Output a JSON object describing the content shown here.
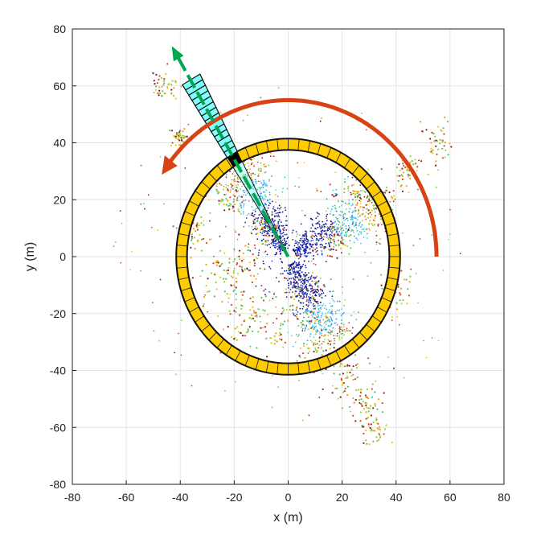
{
  "chart_data": {
    "type": "scatter",
    "title": "",
    "xlabel": "x (m)",
    "ylabel": "y (m)",
    "xlim": [
      -80,
      80
    ],
    "ylim": [
      -80,
      80
    ],
    "xticks": [
      "-80",
      "-60",
      "-40",
      "-20",
      "0",
      "20",
      "40",
      "60",
      "80"
    ],
    "yticks": [
      "80",
      "60",
      "40",
      "20",
      "0",
      "-20",
      "-40",
      "-60",
      "-80"
    ],
    "grid": true,
    "ring": {
      "center": [
        0,
        0
      ],
      "inner_radius": 37.5,
      "outer_radius": 41.5,
      "segments": 64,
      "color": "#FFCC00"
    },
    "sector": {
      "origin": [
        0,
        0
      ],
      "azimuth_deg": 120,
      "range": 72,
      "width_deg": 6,
      "bins": 14,
      "color": "#80FFFF",
      "highlighted_cell": [
        -20,
        34
      ]
    },
    "sweep_arc": {
      "radius": 55,
      "start_deg": 0,
      "end_deg": 145,
      "color": "#D84315"
    },
    "direction_arrow": {
      "from": [
        0,
        0
      ],
      "to": [
        -42,
        72
      ],
      "color": "#00A651"
    },
    "point_clusters": [
      {
        "color": "#0a0a8c",
        "center": [
          0,
          0
        ],
        "description": "near ground rings"
      }
    ]
  }
}
